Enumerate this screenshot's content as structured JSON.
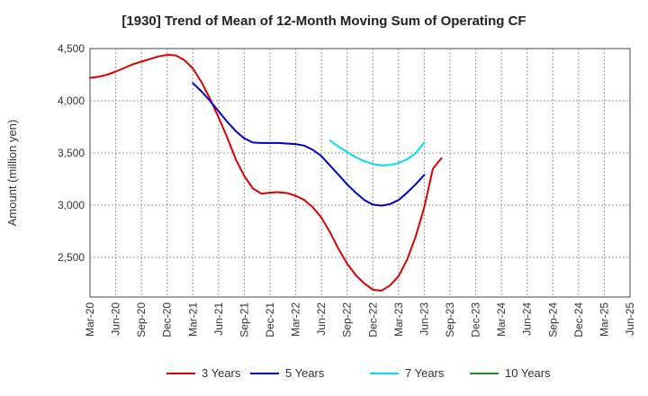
{
  "chart_data": {
    "type": "line",
    "title": "[1930]  Trend of Mean of 12-Month Moving Sum of Operating CF",
    "xlabel": "",
    "ylabel": "Amount (million yen)",
    "ylim": [
      2120,
      4500
    ],
    "yticks": [
      2500,
      3000,
      3500,
      4000,
      4500
    ],
    "ytick_labels": [
      "2,500",
      "3,000",
      "3,500",
      "4,000",
      "4,500"
    ],
    "grid": true,
    "legend_position": "bottom",
    "x_tick_labels": [
      "Mar-20",
      "Jun-20",
      "Sep-20",
      "Dec-20",
      "Mar-21",
      "Jun-21",
      "Sep-21",
      "Dec-21",
      "Mar-22",
      "Jun-22",
      "Sep-22",
      "Dec-22",
      "Mar-23",
      "Jun-23",
      "Sep-23",
      "Dec-23",
      "Mar-24",
      "Jun-24",
      "Sep-24",
      "Dec-24",
      "Mar-25",
      "Jun-25"
    ],
    "series": [
      {
        "name": "3 Years",
        "color": "#dd0000",
        "start_index": 0,
        "values": [
          4220,
          4230,
          4250,
          4280,
          4315,
          4350,
          4375,
          4400,
          4425,
          4440,
          4435,
          4390,
          4310,
          4180,
          4020,
          3840,
          3650,
          3440,
          3280,
          3160,
          3110,
          3120,
          3125,
          3115,
          3090,
          3050,
          2980,
          2880,
          2740,
          2580,
          2440,
          2330,
          2250,
          2190,
          2180,
          2230,
          2320,
          2480,
          2700,
          2980,
          3350,
          3450
        ]
      },
      {
        "name": "5 Years",
        "color": "#0000cc",
        "start_index": 12,
        "values": [
          4170,
          4090,
          4000,
          3900,
          3800,
          3710,
          3640,
          3600,
          3595,
          3595,
          3595,
          3590,
          3585,
          3570,
          3530,
          3470,
          3380,
          3290,
          3200,
          3120,
          3050,
          3005,
          2995,
          3010,
          3050,
          3120,
          3200,
          3290
        ]
      },
      {
        "name": "7 Years",
        "color": "#00ddee",
        "start_index": 28,
        "values": [
          3620,
          3560,
          3510,
          3460,
          3420,
          3395,
          3380,
          3385,
          3405,
          3440,
          3500,
          3600
        ]
      },
      {
        "name": "10 Years",
        "color": "#228b22",
        "start_index": 0,
        "values": []
      }
    ]
  }
}
